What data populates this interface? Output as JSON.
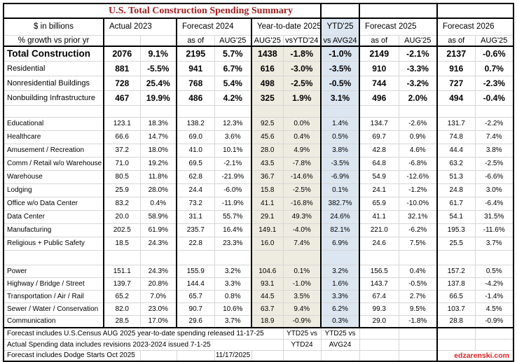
{
  "chart_data": {
    "type": "table",
    "title": "U.S. Total Construction Spending Summary",
    "units_note": [
      "$ in billions",
      "% growth vs prior yr"
    ],
    "columns": [
      "Category",
      "Actual 2023 ($B)",
      "Actual 2023 (% growth)",
      "Forecast 2024 as of AUG'25 ($B)",
      "Forecast 2024 (% growth)",
      "Year-to-date 2025 AUG'25 ($B)",
      "YTD'25 vsYTD'24 (%)",
      "YTD'25 vs AVG24 (%)",
      "Forecast 2025 as of AUG'25 ($B)",
      "Forecast 2025 (% growth)",
      "Forecast 2026 as of AUG'25 ($B)",
      "Forecast 2026 (% growth)"
    ],
    "sections": [
      {
        "name": "totals",
        "rows": [
          [
            "Total Construction",
            "2076",
            "9.1%",
            "2195",
            "5.7%",
            "1438",
            "-1.8%",
            "-1.0%",
            "2149",
            "-2.1%",
            "2137",
            "-0.6%"
          ],
          [
            "Residential",
            "881",
            "-5.5%",
            "941",
            "6.7%",
            "616",
            "-3.0%",
            "-3.5%",
            "910",
            "-3.3%",
            "916",
            "0.7%"
          ],
          [
            "Nonresidential Buildings",
            "728",
            "25.4%",
            "768",
            "5.4%",
            "498",
            "-2.5%",
            "-0.5%",
            "744",
            "-3.2%",
            "727",
            "-2.3%"
          ],
          [
            "Nonbuilding Infrastructure",
            "467",
            "19.9%",
            "486",
            "4.2%",
            "325",
            "1.9%",
            "3.1%",
            "496",
            "2.0%",
            "494",
            "-0.4%"
          ]
        ]
      },
      {
        "name": "nonresidential_buildings_detail",
        "rows": [
          [
            "Educational",
            "123.1",
            "18.3%",
            "138.2",
            "12.3%",
            "92.5",
            "0.0%",
            "1.4%",
            "134.7",
            "-2.6%",
            "131.7",
            "-2.2%"
          ],
          [
            "Healthcare",
            "66.6",
            "14.7%",
            "69.0",
            "3.6%",
            "45.6",
            "0.4%",
            "0.5%",
            "69.7",
            "0.9%",
            "74.8",
            "7.4%"
          ],
          [
            "Amusement / Recreation",
            "37.2",
            "18.0%",
            "41.0",
            "10.1%",
            "28.0",
            "4.9%",
            "3.8%",
            "42.8",
            "4.6%",
            "44.4",
            "3.8%"
          ],
          [
            "Comm / Retail w/o Warehouse",
            "71.0",
            "19.2%",
            "69.5",
            "-2.1%",
            "43.5",
            "-7.8%",
            "-3.5%",
            "64.8",
            "-6.8%",
            "63.2",
            "-2.5%"
          ],
          [
            "Warehouse",
            "80.5",
            "11.8%",
            "62.8",
            "-21.9%",
            "36.7",
            "-14.6%",
            "-6.9%",
            "54.9",
            "-12.6%",
            "51.3",
            "-6.6%"
          ],
          [
            "Lodging",
            "25.9",
            "28.0%",
            "24.4",
            "-6.0%",
            "15.8",
            "-2.5%",
            "0.1%",
            "24.1",
            "-1.2%",
            "24.8",
            "3.0%"
          ],
          [
            "Office w/o Data Center",
            "83.2",
            "0.4%",
            "73.2",
            "-11.9%",
            "41.1",
            "-16.8%",
            "382.7%",
            "65.9",
            "-10.0%",
            "61.7",
            "-6.4%"
          ],
          [
            "Data Center",
            "20.0",
            "58.9%",
            "31.1",
            "55.7%",
            "29.1",
            "49.3%",
            "24.6%",
            "41.1",
            "32.1%",
            "54.1",
            "31.5%"
          ],
          [
            "Manufacturing",
            "202.5",
            "61.9%",
            "235.7",
            "16.4%",
            "149.1",
            "-4.0%",
            "82.1%",
            "221.0",
            "-6.2%",
            "195.3",
            "-11.6%"
          ],
          [
            "Religious + Public Safety",
            "18.5",
            "24.3%",
            "22.8",
            "23.3%",
            "16.0",
            "7.4%",
            "6.9%",
            "24.6",
            "7.5%",
            "25.5",
            "3.7%"
          ]
        ]
      },
      {
        "name": "nonbuilding_infrastructure_detail",
        "rows": [
          [
            "Power",
            "151.1",
            "24.3%",
            "155.9",
            "3.2%",
            "104.6",
            "0.1%",
            "3.2%",
            "156.5",
            "0.4%",
            "157.2",
            "0.5%"
          ],
          [
            "Highway / Bridge / Street",
            "139.7",
            "20.8%",
            "144.4",
            "3.3%",
            "93.1",
            "-1.0%",
            "1.6%",
            "143.7",
            "-0.5%",
            "137.8",
            "-4.2%"
          ],
          [
            "Transportation / Air / Rail",
            "65.2",
            "7.0%",
            "65.7",
            "0.8%",
            "44.5",
            "3.5%",
            "3.3%",
            "67.4",
            "2.7%",
            "66.5",
            "-1.4%"
          ],
          [
            "Sewer / Water / Conservation",
            "82.0",
            "23.0%",
            "90.7",
            "10.6%",
            "63.7",
            "9.4%",
            "6.2%",
            "99.3",
            "9.5%",
            "103.7",
            "4.5%"
          ],
          [
            "Communication",
            "28.5",
            "17.0%",
            "29.6",
            "3.7%",
            "18.9",
            "-0.9%",
            "0.3%",
            "29.0",
            "-1.8%",
            "28.8",
            "-0.9%"
          ]
        ]
      }
    ]
  },
  "header": {
    "units_line1": "$ in billions",
    "units_line2": "% growth vs prior yr",
    "groups": [
      {
        "label": "Actual 2023",
        "sub": [
          "",
          ""
        ]
      },
      {
        "label": "Forecast 2024",
        "sub": [
          "as of",
          "AUG'25"
        ]
      },
      {
        "label": "Year-to-date 2025",
        "sub": [
          "AUG'25",
          "vsYTD'24"
        ]
      },
      {
        "label": "YTD'25",
        "sub": [
          "vs AVG24"
        ]
      },
      {
        "label": "Forecast 2025",
        "sub": [
          "as of",
          "AUG'25"
        ]
      },
      {
        "label": "Forecast 2026",
        "sub": [
          "as of",
          "AUG'25"
        ]
      }
    ]
  },
  "footer": {
    "rows": [
      {
        "note": "Forecast includes U.S.Census AUG 2025 year-to-date spending released 11-17-25",
        "ytd_col": "YTD25 vs",
        "avg_col": "YTD25 vs"
      },
      {
        "note": "Actual Spending data includes revisions 2023-2024 issued 7-1-25",
        "ytd_col": "YTD24",
        "avg_col": "AVG24"
      },
      {
        "note": "Forecast includes Dodge Starts Oct 2025",
        "date": "11/17/2025",
        "credit": "edzarenski.com"
      }
    ]
  },
  "colors": {
    "title_text": "#a32020",
    "credit_text": "#e32222",
    "ytd_fill": "#eeece1",
    "avg_fill": "#dce6f1",
    "grid_line": "#d6d6d6",
    "border": "#000000"
  }
}
